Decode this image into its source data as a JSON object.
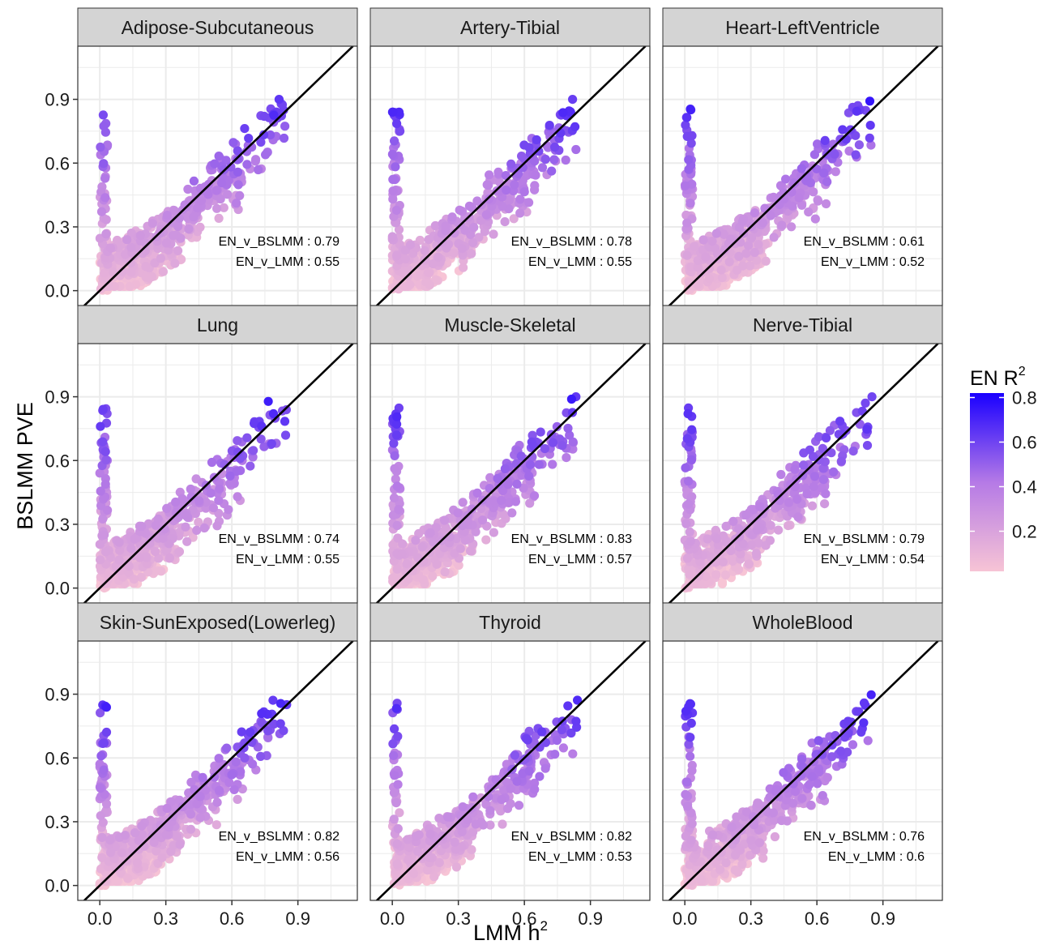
{
  "figure": {
    "xlabel": "LMM h",
    "xlabel_sup": "2",
    "ylabel": "BSLMM PVE",
    "legend": {
      "title": "EN R",
      "title_sup": "2",
      "ticks": [
        "0.2",
        "0.4",
        "0.6",
        "0.8"
      ],
      "tick_values": [
        0.2,
        0.4,
        0.6,
        0.8
      ],
      "range": [
        0.02,
        0.82
      ],
      "color_low": "#f7c4d5",
      "color_mid": "#b57ae6",
      "color_high": "#1a00ff"
    },
    "panel_bg": "#ffffff",
    "strip_bg": "#d4d4d4",
    "grid_color": "#ebebeb"
  },
  "chart_data": {
    "type": "scatter",
    "x_ticks": [
      "0.0",
      "0.3",
      "0.6",
      "0.9"
    ],
    "x_tick_values": [
      0,
      0.3,
      0.6,
      0.9
    ],
    "y_ticks": [
      "0.0",
      "0.3",
      "0.6",
      "0.9"
    ],
    "y_tick_values": [
      0,
      0.3,
      0.6,
      0.9
    ],
    "xlim": [
      -0.1,
      1.17
    ],
    "ylim": [
      -0.07,
      1.15
    ],
    "reference_line": "y = x",
    "grid": true,
    "legend_position": "right",
    "facets": [
      {
        "name": "Adipose-Subcutaneous",
        "stat1_label": "EN_v_BSLMM",
        "stat1_value": "0.79",
        "stat2_label": "EN_v_LMM",
        "stat2_value": "0.55",
        "seed": 11
      },
      {
        "name": "Artery-Tibial",
        "stat1_label": "EN_v_BSLMM",
        "stat1_value": "0.78",
        "stat2_label": "EN_v_LMM",
        "stat2_value": "0.55",
        "seed": 23
      },
      {
        "name": "Heart-LeftVentricle",
        "stat1_label": "EN_v_BSLMM",
        "stat1_value": "0.61",
        "stat2_label": "EN_v_LMM",
        "stat2_value": "0.52",
        "seed": 37
      },
      {
        "name": "Lung",
        "stat1_label": "EN_v_BSLMM",
        "stat1_value": "0.74",
        "stat2_label": "EN_v_LMM",
        "stat2_value": "0.55",
        "seed": 41
      },
      {
        "name": "Muscle-Skeletal",
        "stat1_label": "EN_v_BSLMM",
        "stat1_value": "0.83",
        "stat2_label": "EN_v_LMM",
        "stat2_value": "0.57",
        "seed": 53
      },
      {
        "name": "Nerve-Tibial",
        "stat1_label": "EN_v_BSLMM",
        "stat1_value": "0.79",
        "stat2_label": "EN_v_LMM",
        "stat2_value": "0.54",
        "seed": 67
      },
      {
        "name": "Skin-SunExposed(Lowerleg)",
        "stat1_label": "EN_v_BSLMM",
        "stat1_value": "0.82",
        "stat2_label": "EN_v_LMM",
        "stat2_value": "0.56",
        "seed": 71
      },
      {
        "name": "Thyroid",
        "stat1_label": "EN_v_BSLMM",
        "stat1_value": "0.82",
        "stat2_label": "EN_v_LMM",
        "stat2_value": "0.53",
        "seed": 83
      },
      {
        "name": "WholeBlood",
        "stat1_label": "EN_v_BSLMM",
        "stat1_value": "0.76",
        "stat2_label": "EN_v_LMM",
        "stat2_value": "0.6",
        "seed": 97
      }
    ]
  }
}
